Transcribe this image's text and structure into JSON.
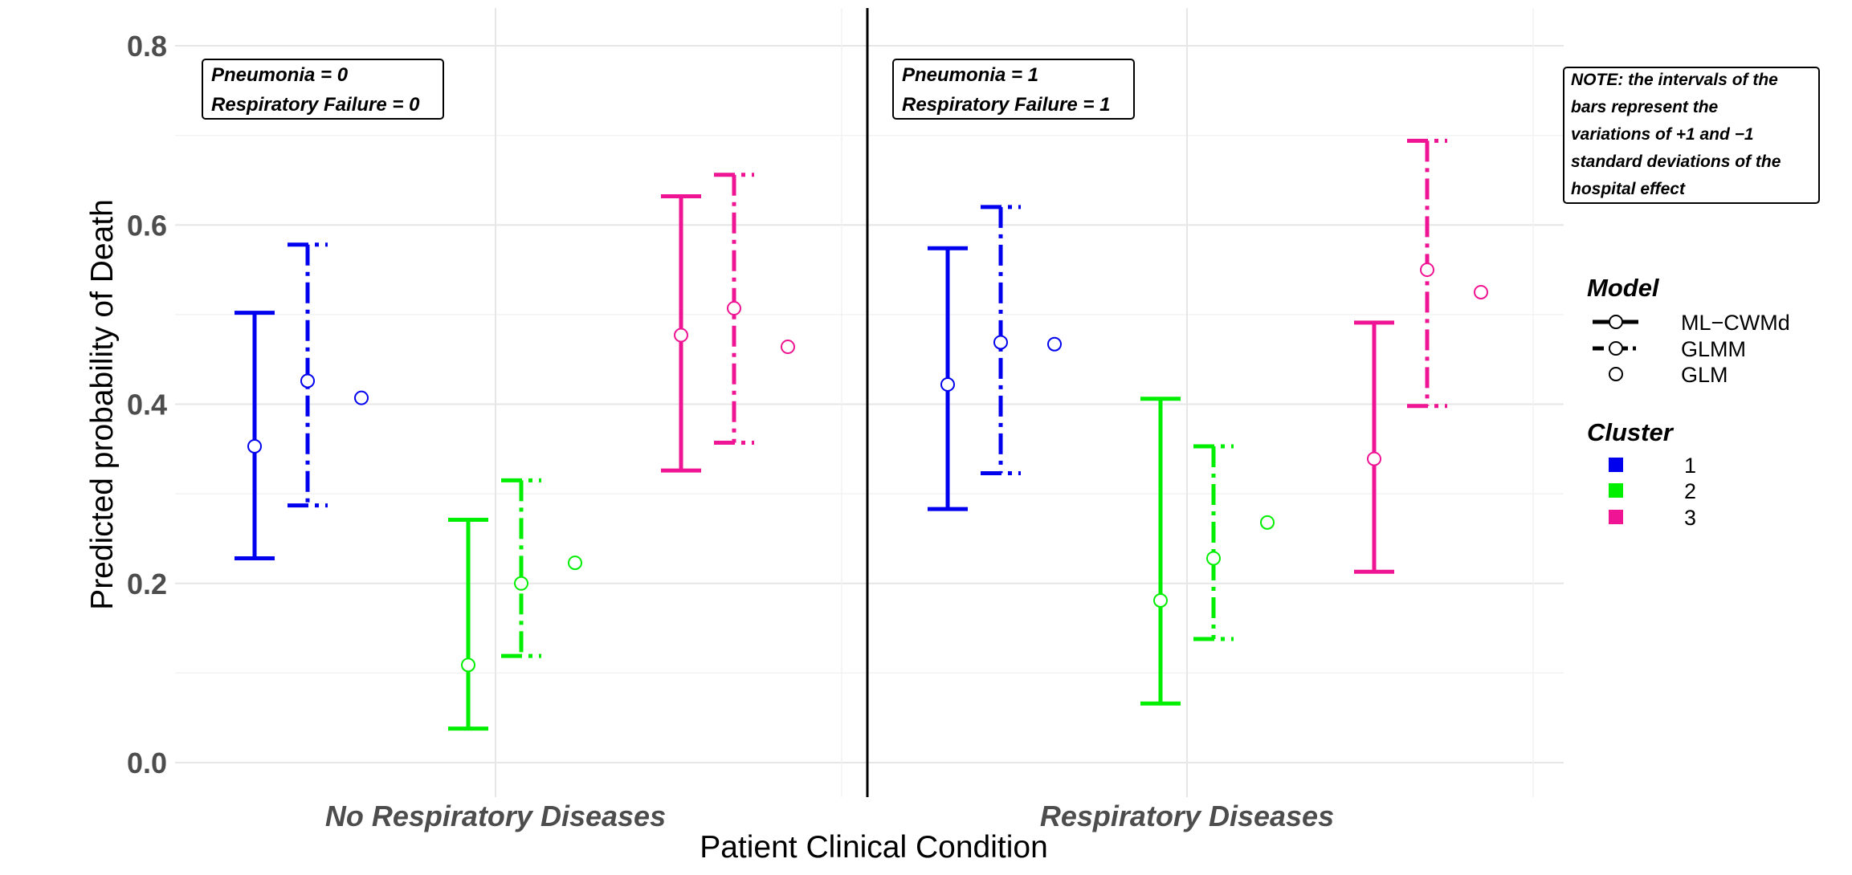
{
  "chart_data": {
    "type": "scatter",
    "title": "",
    "xlabel": "Patient Clinical Condition",
    "ylabel": "Predicted probability of Death",
    "ylim": [
      -0.035,
      0.84
    ],
    "yticks": [
      "0.0",
      "0.2",
      "0.4",
      "0.6",
      "0.8"
    ],
    "grid": true,
    "categories": [
      "No Respiratory Diseases",
      "Respiratory Diseases"
    ],
    "panel_labels": [
      [
        "Pneumonia = 0",
        "Respiratory Failure = 0"
      ],
      [
        "Pneumonia = 1",
        "Respiratory Failure = 1"
      ]
    ],
    "note": [
      "NOTE: the intervals of the",
      "bars represent the",
      "variations of +1 and −1",
      "standard deviations of the",
      "hospital effect"
    ],
    "legend_model": {
      "title": "Model",
      "items": [
        {
          "label": "ML−CWMd",
          "line": "solid"
        },
        {
          "label": "GLMM",
          "line": "dashdot"
        },
        {
          "label": "GLM",
          "line": "none"
        }
      ]
    },
    "legend_cluster": {
      "title": "Cluster",
      "items": [
        {
          "label": "1",
          "color": "#0000ee"
        },
        {
          "label": "2",
          "color": "#00ee00"
        },
        {
          "label": "3",
          "color": "#ee1493"
        }
      ]
    },
    "series": [
      {
        "condition": 0,
        "cluster": 1,
        "model": "ML-CWMd",
        "value": 0.353,
        "lower": 0.228,
        "upper": 0.502
      },
      {
        "condition": 0,
        "cluster": 1,
        "model": "GLMM",
        "value": 0.426,
        "lower": 0.287,
        "upper": 0.578
      },
      {
        "condition": 0,
        "cluster": 1,
        "model": "GLM",
        "value": 0.407
      },
      {
        "condition": 0,
        "cluster": 2,
        "model": "ML-CWMd",
        "value": 0.109,
        "lower": 0.038,
        "upper": 0.271
      },
      {
        "condition": 0,
        "cluster": 2,
        "model": "GLMM",
        "value": 0.2,
        "lower": 0.119,
        "upper": 0.315
      },
      {
        "condition": 0,
        "cluster": 2,
        "model": "GLM",
        "value": 0.223
      },
      {
        "condition": 0,
        "cluster": 3,
        "model": "ML-CWMd",
        "value": 0.477,
        "lower": 0.326,
        "upper": 0.632
      },
      {
        "condition": 0,
        "cluster": 3,
        "model": "GLMM",
        "value": 0.507,
        "lower": 0.357,
        "upper": 0.656
      },
      {
        "condition": 0,
        "cluster": 3,
        "model": "GLM",
        "value": 0.464
      },
      {
        "condition": 1,
        "cluster": 1,
        "model": "ML-CWMd",
        "value": 0.422,
        "lower": 0.283,
        "upper": 0.574
      },
      {
        "condition": 1,
        "cluster": 1,
        "model": "GLMM",
        "value": 0.469,
        "lower": 0.323,
        "upper": 0.62
      },
      {
        "condition": 1,
        "cluster": 1,
        "model": "GLM",
        "value": 0.467
      },
      {
        "condition": 1,
        "cluster": 2,
        "model": "ML-CWMd",
        "value": 0.181,
        "lower": 0.066,
        "upper": 0.406
      },
      {
        "condition": 1,
        "cluster": 2,
        "model": "GLMM",
        "value": 0.228,
        "lower": 0.138,
        "upper": 0.353
      },
      {
        "condition": 1,
        "cluster": 2,
        "model": "GLM",
        "value": 0.268
      },
      {
        "condition": 1,
        "cluster": 3,
        "model": "ML-CWMd",
        "value": 0.339,
        "lower": 0.213,
        "upper": 0.491
      },
      {
        "condition": 1,
        "cluster": 3,
        "model": "GLMM",
        "value": 0.55,
        "lower": 0.398,
        "upper": 0.694
      },
      {
        "condition": 1,
        "cluster": 3,
        "model": "GLM",
        "value": 0.525
      }
    ]
  }
}
